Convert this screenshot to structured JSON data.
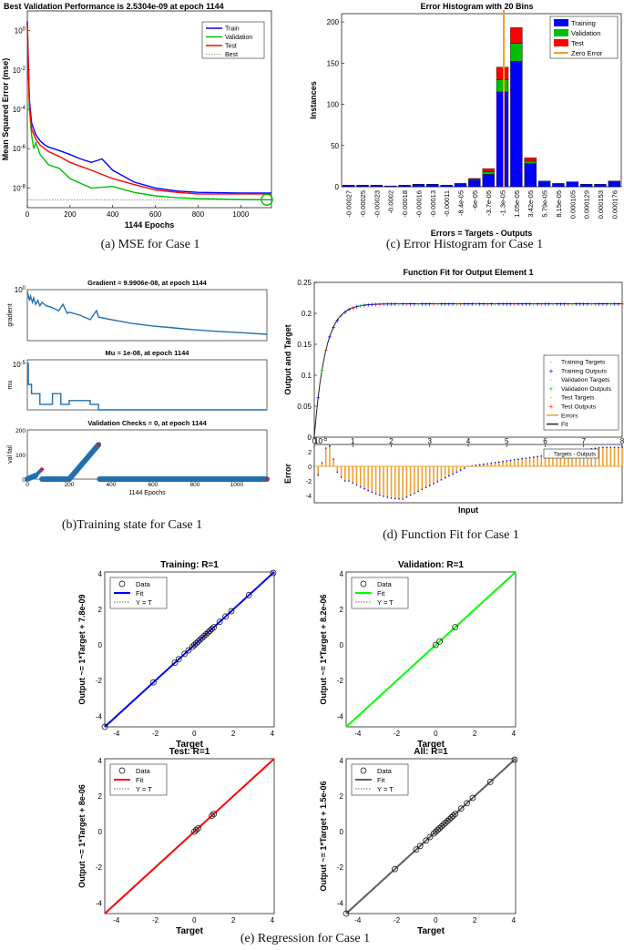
{
  "captions": {
    "a": "(a)  MSE for Case 1",
    "b": "(b)Training state for Case 1",
    "c": "(c) Error Histogram for Case 1",
    "d": "(d) Function Fit for Case 1",
    "e": "(e) Regression for Case 1"
  },
  "colors": {
    "train": "#0000ff",
    "validation": "#00c000",
    "test": "#ff0000",
    "zero_error": "#f0a030",
    "state_line": "#2070b0",
    "fit_gray": "#606060"
  },
  "chart_data": [
    {
      "id": "mse",
      "type": "line",
      "title": "Best Validation Performance is 2.5304e-09 at epoch 1144",
      "xlabel": "1144 Epochs",
      "ylabel": "Mean Squared Error  (mse)",
      "yscale": "log",
      "xlim": [
        0,
        1144
      ],
      "ylim": [
        1e-09,
        10
      ],
      "xticks": [
        0,
        200,
        400,
        600,
        800,
        1000
      ],
      "yticks": [
        {
          "v": 1,
          "label": "10^0"
        },
        {
          "v": 0.01,
          "label": "10^-2"
        },
        {
          "v": 0.0001,
          "label": "10^-4"
        },
        {
          "v": 1e-06,
          "label": "10^-6"
        },
        {
          "v": 1e-08,
          "label": "10^-8"
        }
      ],
      "legend": [
        "Train",
        "Validation",
        "Test",
        "Best"
      ],
      "legend_position": "top-right",
      "series": [
        {
          "name": "Train",
          "x": [
            0,
            5,
            10,
            20,
            40,
            60,
            80,
            100,
            150,
            200,
            250,
            300,
            350,
            400,
            500,
            600,
            700,
            800,
            1000,
            1144
          ],
          "y": [
            3,
            0.02,
            0.0003,
            2e-05,
            5e-06,
            2.5e-06,
            1.6e-06,
            1.2e-06,
            8e-07,
            5e-07,
            3e-07,
            2e-07,
            3e-07,
            8e-08,
            2e-08,
            1e-08,
            7e-09,
            6e-09,
            5.5e-09,
            5.5e-09
          ]
        },
        {
          "name": "Validation",
          "x": [
            0,
            5,
            10,
            20,
            30,
            40,
            60,
            100,
            150,
            200,
            300,
            400,
            500,
            600,
            700,
            800,
            1000,
            1144
          ],
          "y": [
            2,
            0.01,
            0.0001,
            5e-06,
            1e-06,
            2e-06,
            5e-07,
            1.5e-07,
            1e-07,
            3e-08,
            1e-08,
            1.2e-08,
            6e-09,
            4e-09,
            3.2e-09,
            2.9e-09,
            2.6e-09,
            2.53e-09
          ]
        },
        {
          "name": "Test",
          "x": [
            0,
            5,
            10,
            20,
            40,
            60,
            100,
            150,
            200,
            300,
            400,
            500,
            600,
            700,
            800,
            1000,
            1144
          ],
          "y": [
            2,
            0.01,
            0.0002,
            1e-05,
            3e-06,
            1.5e-06,
            7e-07,
            4e-07,
            2e-07,
            8e-08,
            3e-08,
            1.5e-08,
            8e-09,
            6e-09,
            5e-09,
            5e-09,
            5e-09
          ]
        }
      ],
      "best": {
        "x": 1144,
        "y": 2.5304e-09
      }
    },
    {
      "id": "histogram",
      "type": "bar",
      "title": "Error Histogram with 20 Bins",
      "xlabel": "Errors = Targets - Outputs",
      "ylabel": "Instances",
      "ylim": [
        0,
        210
      ],
      "yticks": [
        0,
        50,
        100,
        150,
        200
      ],
      "categories": [
        "-0.00027",
        "-0.00025",
        "-0.00023",
        "-0.0002",
        "-0.00018",
        "-0.00016",
        "-0.00013",
        "-0.00011",
        "-8.4e-05",
        "-6e-05",
        "-3.7e-05",
        "-1.3e-05",
        "1.05e-05",
        "3.42e-05",
        "5.79e-05",
        "8.15e-05",
        "0.000105",
        "0.000129",
        "0.000153",
        "0.000176"
      ],
      "series": [
        {
          "name": "Training",
          "values": [
            2,
            2,
            2,
            1,
            2,
            3,
            3,
            2,
            4,
            8,
            15,
            115,
            152,
            28,
            6,
            4,
            6,
            3,
            3,
            6
          ]
        },
        {
          "name": "Validation",
          "values": [
            0,
            0,
            0,
            0,
            0,
            0,
            0,
            0,
            0,
            1,
            3,
            15,
            22,
            3,
            1,
            0,
            0,
            0,
            0,
            0
          ]
        },
        {
          "name": "Test",
          "values": [
            0,
            0,
            0,
            0,
            0,
            0,
            0,
            0,
            0,
            1,
            4,
            15,
            19,
            4,
            0,
            0,
            0,
            0,
            0,
            1
          ]
        }
      ],
      "zero_error_label": "Zero Error",
      "zero_error_at": 11.6,
      "legend_position": "top-right"
    },
    {
      "id": "gradient",
      "type": "line",
      "title": "Gradient = 9.9906e-08, at epoch 1144",
      "ylabel": "gradient",
      "yscale": "log",
      "ylim": [
        1e-08,
        1
      ],
      "ytick_label": "10^0",
      "x": [
        0,
        10,
        15,
        25,
        30,
        40,
        50,
        60,
        70,
        90,
        110,
        150,
        170,
        190,
        200,
        250,
        300,
        330,
        340,
        400,
        500,
        600,
        700,
        800,
        900,
        1000,
        1144
      ],
      "y": [
        0.5,
        0.02,
        0.1,
        0.01,
        0.05,
        0.005,
        0.02,
        0.003,
        0.01,
        0.003,
        0.002,
        0.0005,
        0.005,
        0.0002,
        0.0003,
        0.0001,
        2e-05,
        0.0005,
        5e-05,
        2e-05,
        5e-06,
        2e-06,
        1e-06,
        5e-07,
        3e-07,
        2e-07,
        9.9906e-08
      ]
    },
    {
      "id": "mu",
      "type": "line",
      "title": "Mu = 1e-08, at epoch 1144",
      "ylabel": "mu",
      "ytick_label": "10^-5",
      "x": [
        0,
        5,
        5,
        20,
        20,
        60,
        60,
        120,
        120,
        160,
        160,
        200,
        200,
        300,
        300,
        340,
        340,
        1144
      ],
      "y": [
        1.0,
        1.0,
        0.55,
        0.55,
        0.35,
        0.35,
        0.12,
        0.12,
        0.35,
        0.35,
        0.12,
        0.12,
        0.2,
        0.2,
        0.12,
        0.12,
        0.0,
        0.0
      ]
    },
    {
      "id": "valfail",
      "type": "line",
      "title": "Validation Checks = 0, at epoch 1144",
      "ylabel": "val fail",
      "xlabel": "1144 Epochs",
      "xlim": [
        0,
        1144
      ],
      "ylim": [
        0,
        200
      ],
      "xticks": [
        0,
        200,
        400,
        600,
        800,
        1000
      ],
      "yticks": [
        0,
        100,
        200
      ],
      "x": [
        0,
        20,
        40,
        70,
        75,
        200,
        340,
        360,
        380,
        1144
      ],
      "y": [
        0,
        10,
        20,
        40,
        0,
        0,
        140,
        0,
        0,
        0
      ]
    },
    {
      "id": "fitfn",
      "type": "line",
      "title": "Function Fit for Output Element 1",
      "ylabel": "Output and Target",
      "xlabel": "Input",
      "x_multiplier": "10^-5",
      "xlim": [
        0,
        8
      ],
      "ylim": [
        0,
        0.25
      ],
      "xticks": [
        0,
        1,
        2,
        3,
        4,
        5,
        6,
        7,
        8
      ],
      "yticks": [
        0,
        0.05,
        0.1,
        0.15,
        0.2,
        0.25
      ],
      "legend": [
        "Training Targets",
        "Training Outputs",
        "Validation Targets",
        "Validation Outputs",
        "Test Targets",
        "Test Outputs",
        "Errors",
        "Fit"
      ],
      "legend_position": "lower-right",
      "curve": {
        "k": 3.5,
        "ymax": 0.2155
      },
      "error_ylabel": "Error",
      "error_legend": "Targets - Outputs",
      "error_yticks": [
        -4,
        -2,
        0,
        2
      ],
      "error_ylim": [
        -5,
        3
      ]
    },
    {
      "id": "reg_training",
      "type": "scatter",
      "title": "Training: R=1",
      "xlabel": "Target",
      "ylabel": "Output ~= 1*Target + 7.8e-09",
      "xlim": [
        -4.6,
        4.1
      ],
      "ylim": [
        -4.6,
        4.1
      ],
      "ticks": [
        -4,
        -2,
        0,
        2,
        4
      ],
      "legend": [
        "Data",
        "Fit",
        "Y = T"
      ],
      "points": [
        -4.6,
        -2.1,
        -1.0,
        -0.8,
        -0.5,
        -0.3,
        -0.1,
        0.0,
        0.1,
        0.2,
        0.3,
        0.4,
        0.5,
        0.6,
        0.7,
        0.8,
        0.9,
        1.0,
        1.3,
        1.6,
        1.9,
        2.8,
        4.05
      ],
      "fit_color": "#0000ff"
    },
    {
      "id": "reg_validation",
      "type": "scatter",
      "title": "Validation: R=1",
      "xlabel": "Target",
      "ylabel": "Output ~= 1*Target + 8.2e-06",
      "xlim": [
        -4.6,
        4.1
      ],
      "ylim": [
        -4.6,
        4.1
      ],
      "ticks": [
        -4,
        -2,
        0,
        2,
        4
      ],
      "legend": [
        "Data",
        "Fit",
        "Y = T"
      ],
      "points": [
        0.0,
        0.2,
        1.0
      ],
      "fit_color": "#00ff00"
    },
    {
      "id": "reg_test",
      "type": "scatter",
      "title": "Test: R=1",
      "xlabel": "Target",
      "ylabel": "Output ~= 1*Target + 8e-06",
      "xlim": [
        -4.6,
        4.1
      ],
      "ylim": [
        -4.6,
        4.1
      ],
      "ticks": [
        -4,
        -2,
        0,
        2,
        4
      ],
      "legend": [
        "Data",
        "Fit",
        "Y = T"
      ],
      "points": [
        0.0,
        0.1,
        0.2,
        0.9,
        1.0
      ],
      "fit_color": "#ff0000"
    },
    {
      "id": "reg_all",
      "type": "scatter",
      "title": "All: R=1",
      "xlabel": "Target",
      "ylabel": "Output ~= 1*Target + 1.5e-06",
      "xlim": [
        -4.6,
        4.1
      ],
      "ylim": [
        -4.6,
        4.1
      ],
      "ticks": [
        -4,
        -2,
        0,
        2,
        4
      ],
      "legend": [
        "Data",
        "Fit",
        "Y = T"
      ],
      "points": [
        -4.6,
        -2.1,
        -1.0,
        -0.8,
        -0.5,
        -0.3,
        -0.1,
        0.0,
        0.1,
        0.2,
        0.3,
        0.4,
        0.5,
        0.6,
        0.7,
        0.8,
        0.9,
        1.0,
        1.3,
        1.6,
        1.9,
        2.8,
        4.05
      ],
      "fit_color": "#606060"
    }
  ]
}
